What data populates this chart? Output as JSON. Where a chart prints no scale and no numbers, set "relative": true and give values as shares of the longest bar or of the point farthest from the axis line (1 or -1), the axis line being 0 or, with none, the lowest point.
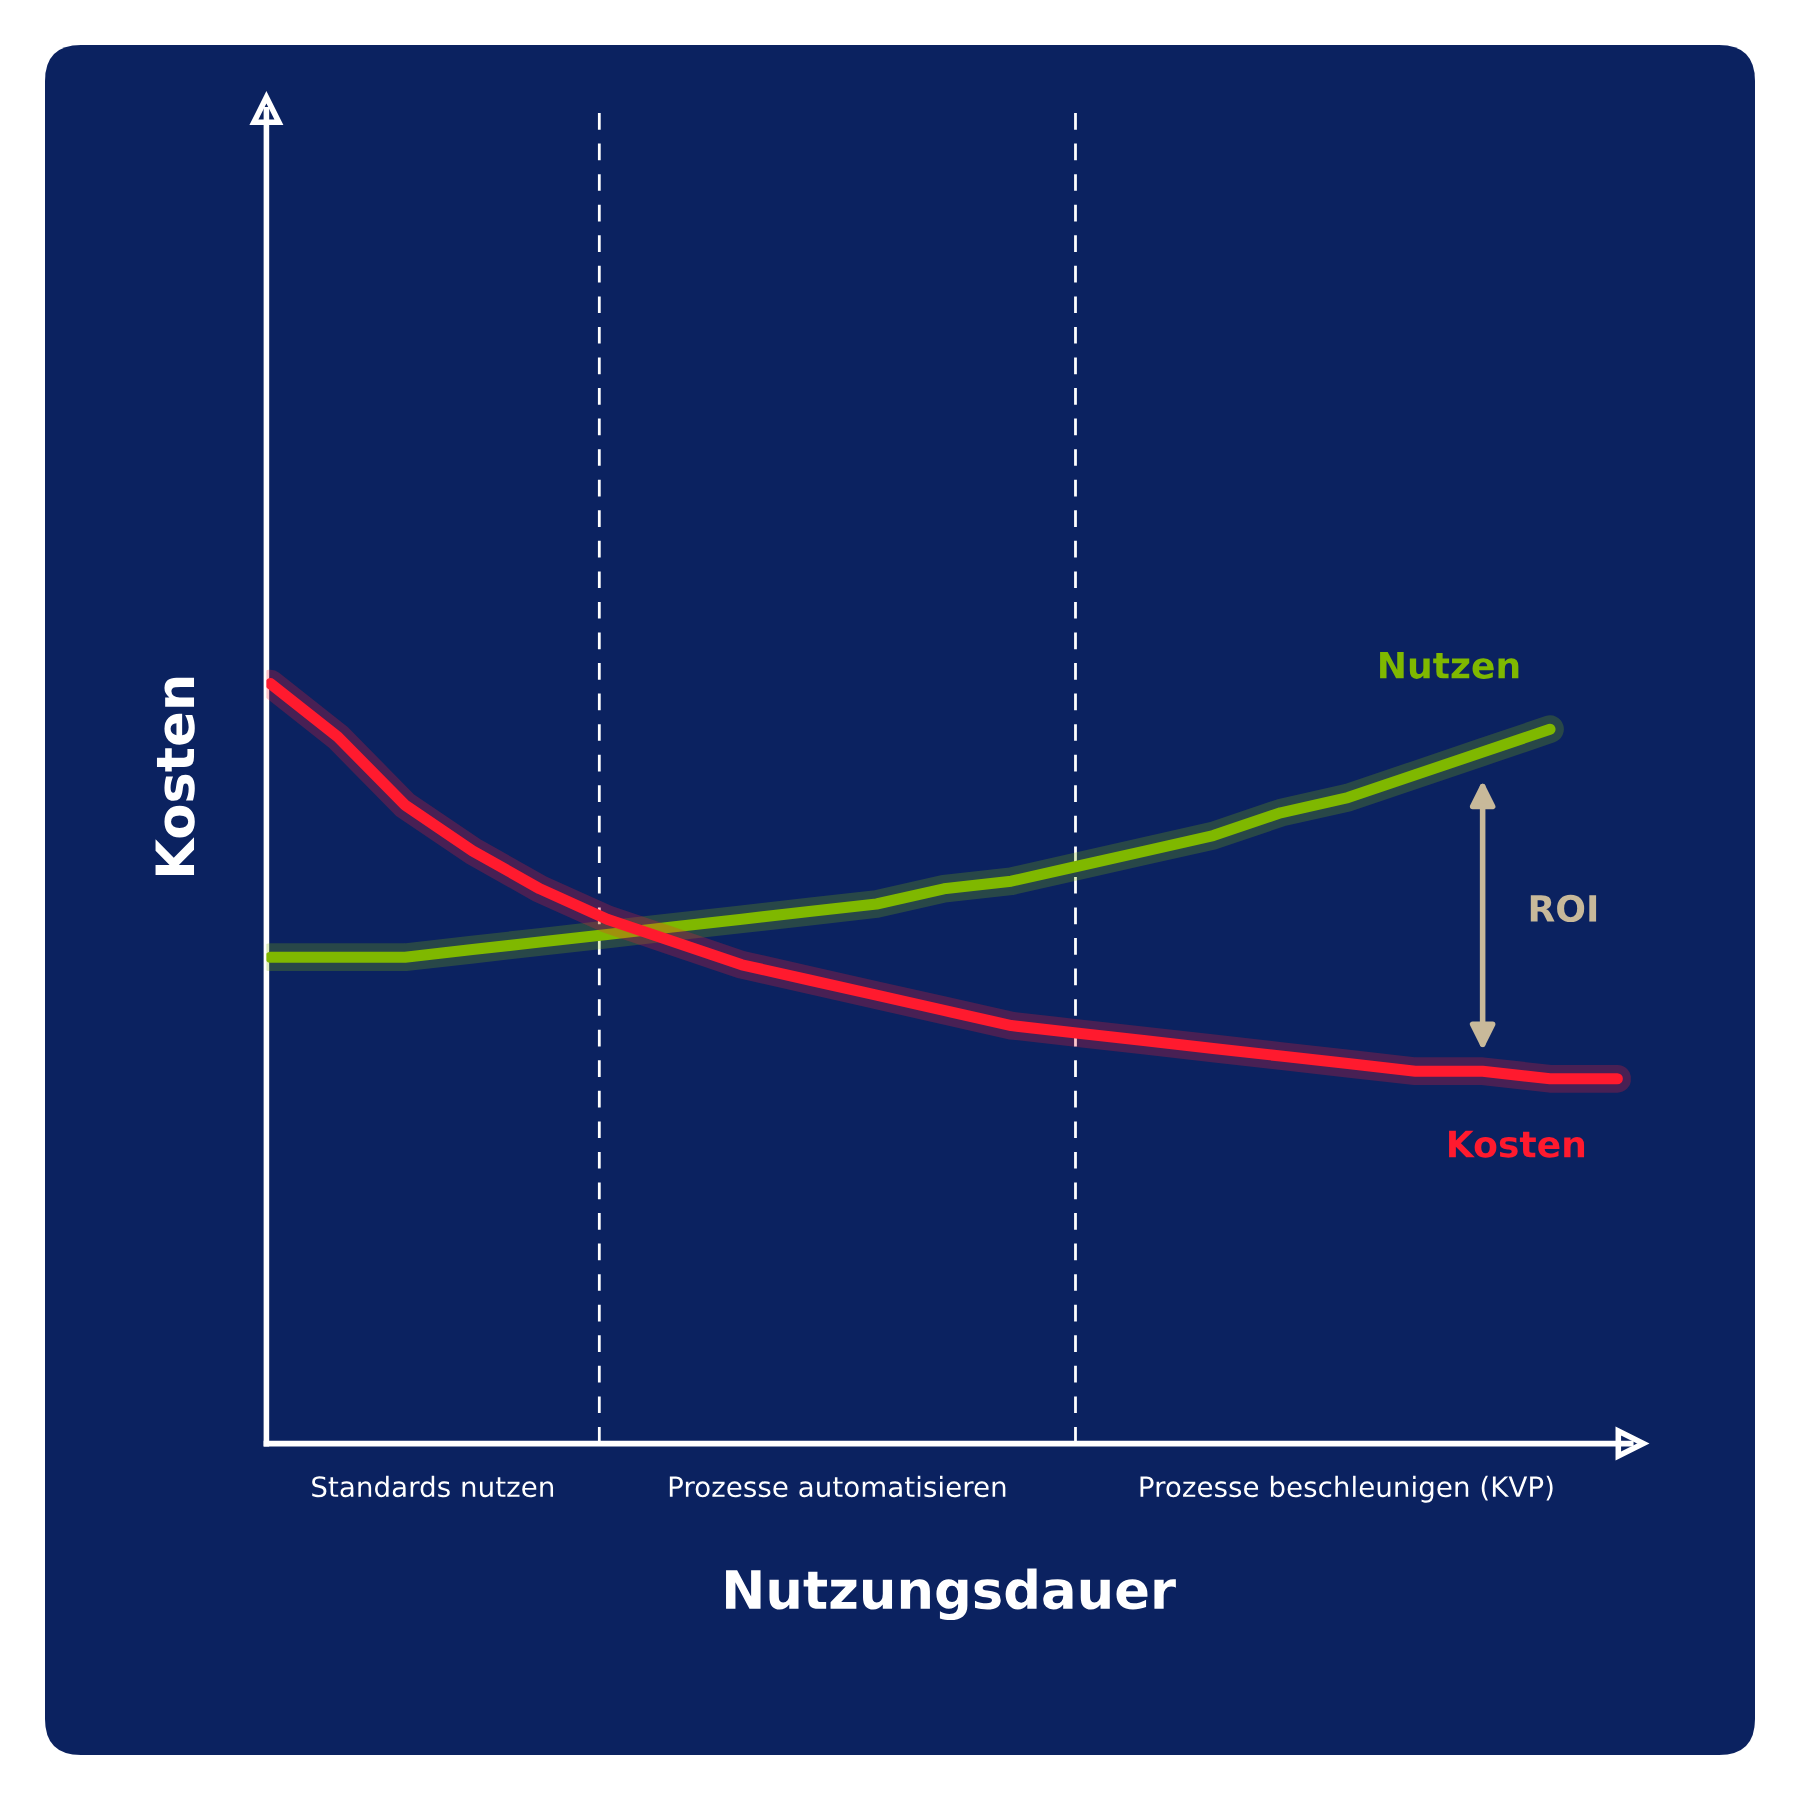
{
  "chart_data": {
    "type": "line",
    "relative": true,
    "xlabel": "Nutzungsdauer",
    "ylabel": "Kosten",
    "categories": [
      null,
      null,
      null,
      null,
      null,
      null,
      null,
      null,
      null,
      null,
      null,
      null,
      null,
      null,
      null,
      null,
      null,
      null,
      null,
      null,
      null
    ],
    "series": [
      {
        "name": "Nutzen",
        "color": "#7fb800",
        "values": [
          0.64,
          0.64,
          0.64,
          0.65,
          0.66,
          0.67,
          0.68,
          0.69,
          0.7,
          0.71,
          0.73,
          0.74,
          0.76,
          0.78,
          0.8,
          0.83,
          0.85,
          0.88,
          0.91,
          0.94,
          null
        ]
      },
      {
        "name": "Kosten",
        "color": "#ff1a2e",
        "values": [
          1.0,
          0.93,
          0.84,
          0.78,
          0.73,
          0.69,
          0.66,
          0.63,
          0.61,
          0.59,
          0.57,
          0.55,
          0.54,
          0.53,
          0.52,
          0.51,
          0.5,
          0.49,
          0.49,
          0.48,
          0.48
        ]
      }
    ],
    "annotations": [
      "Standards nutzen",
      "Prozesse automatisieren",
      "Prozesse beschleunigen (KVP)",
      "ROI"
    ],
    "legend": false,
    "marker": "none",
    "line_style": "solid"
  }
}
